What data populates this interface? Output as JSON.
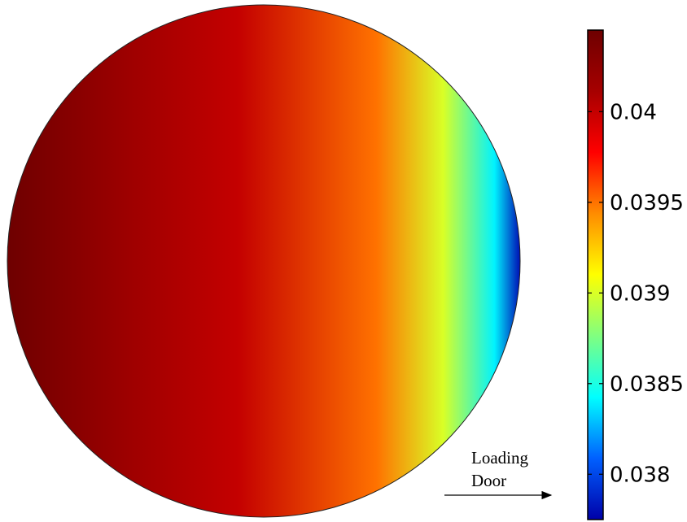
{
  "chart_data": {
    "type": "heatmap",
    "shape": "circle",
    "variation_axis": "horizontal",
    "colormap": "jet",
    "colormap_stops": [
      "#6e0000",
      "#a60000",
      "#ff0000",
      "#ff8c00",
      "#ffff00",
      "#80ff80",
      "#00ffff",
      "#0060ff",
      "#0000a8"
    ],
    "field_gradient": [
      {
        "x": 0.0,
        "value": 0.04045
      },
      {
        "x": 0.25,
        "value": 0.04015
      },
      {
        "x": 0.45,
        "value": 0.04
      },
      {
        "x": 0.72,
        "value": 0.0395
      },
      {
        "x": 0.85,
        "value": 0.039
      },
      {
        "x": 0.95,
        "value": 0.0384
      },
      {
        "x": 1.0,
        "value": 0.0378
      }
    ],
    "colorbar": {
      "range": [
        0.03775,
        0.04045
      ],
      "ticks": [
        0.04,
        0.0395,
        0.039,
        0.0385,
        0.038
      ],
      "tick_labels": [
        "0.04",
        "0.0395",
        "0.039",
        "0.0385",
        "0.038"
      ]
    },
    "annotation": {
      "line1": "Loading",
      "line2": "Door",
      "arrow_direction": "right"
    }
  }
}
